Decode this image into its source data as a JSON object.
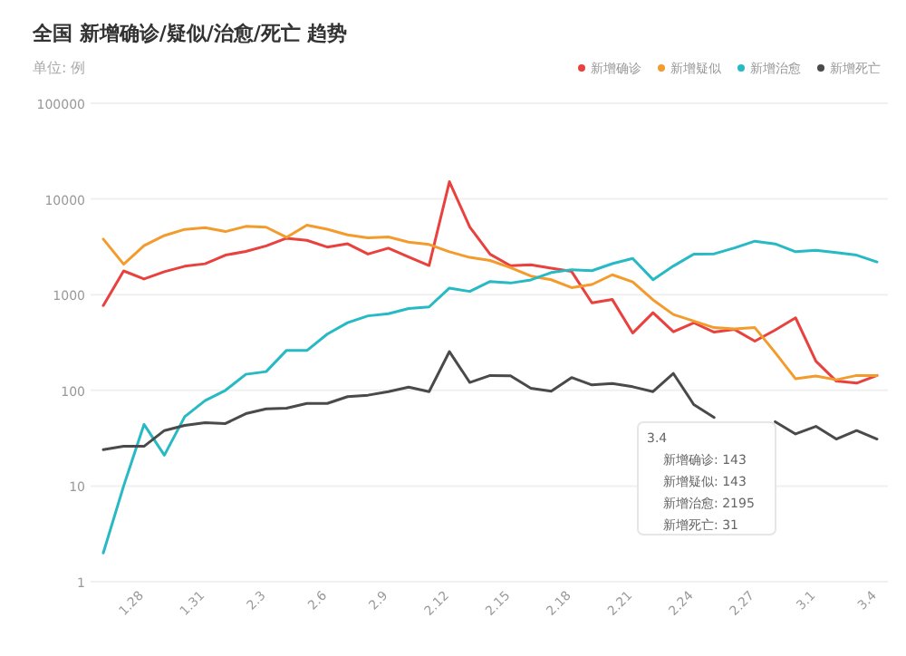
{
  "chart_data": {
    "type": "line",
    "title": "全国 新增确诊/疑似/治愈/死亡 趋势",
    "subtitle": "单位: 例",
    "categories": [
      null,
      null,
      "1.28",
      null,
      null,
      "1.31",
      null,
      null,
      "2.3",
      null,
      null,
      "2.6",
      null,
      null,
      "2.9",
      null,
      null,
      "2.12",
      null,
      null,
      "2.15",
      null,
      null,
      "2.18",
      null,
      null,
      "2.21",
      null,
      null,
      "2.24",
      null,
      null,
      "2.27",
      null,
      null,
      "3.1",
      null,
      null,
      "3.4"
    ],
    "log": "y",
    "ylim": [
      1,
      100000
    ],
    "yticks": [
      1,
      10,
      100,
      1000,
      10000,
      100000
    ],
    "grid": "y",
    "legend": "top right",
    "marker": "none",
    "line_style": "solid",
    "series": [
      {
        "name": "新增确诊",
        "color": "#e8413e",
        "values": [
          769,
          1771,
          1459,
          1737,
          1982,
          2102,
          2590,
          2829,
          3235,
          3887,
          3694,
          3143,
          3399,
          2656,
          3062,
          2478,
          2015,
          15152,
          5090,
          2641,
          2009,
          2048,
          1886,
          1749,
          820,
          889,
          397,
          648,
          409,
          508,
          406,
          433,
          327,
          427,
          573,
          202,
          125,
          119,
          143
        ]
      },
      {
        "name": "新增疑似",
        "color": "#f39c2d",
        "values": [
          3806,
          2077,
          3248,
          4148,
          4812,
          5019,
          4562,
          5173,
          5072,
          3971,
          5328,
          4833,
          4214,
          3916,
          4008,
          3536,
          3342,
          2807,
          2450,
          2277,
          1918,
          1563,
          1432,
          1185,
          1277,
          1614,
          1361,
          882,
          620,
          530,
          452,
          439,
          452,
          248,
          132,
          141,
          129,
          143,
          143
        ]
      },
      {
        "name": "新增治愈",
        "color": "#27b9c4",
        "values": [
          2,
          10,
          44,
          21,
          53,
          78,
          100,
          147,
          157,
          262,
          261,
          387,
          510,
          600,
          632,
          716,
          744,
          1171,
          1081,
          1373,
          1323,
          1425,
          1701,
          1824,
          1779,
          2109,
          2393,
          1435,
          1992,
          2652,
          2669,
          3079,
          3622,
          3390,
          2812,
          2908,
          2756,
          2590,
          2195
        ]
      },
      {
        "name": "新增死亡",
        "color": "#4a4a4a",
        "values": [
          24,
          26,
          26,
          38,
          43,
          46,
          45,
          57,
          64,
          65,
          73,
          73,
          86,
          89,
          97,
          108,
          97,
          254,
          121,
          143,
          142,
          105,
          98,
          136,
          114,
          118,
          109,
          97,
          150,
          71,
          52,
          null,
          null,
          47,
          35,
          42,
          31,
          38,
          31
        ]
      }
    ],
    "annotations": [
      "3.4",
      "新增确诊: 143",
      "新增疑似: 143",
      "新增治愈: 2195",
      "新增死亡: 31"
    ]
  }
}
